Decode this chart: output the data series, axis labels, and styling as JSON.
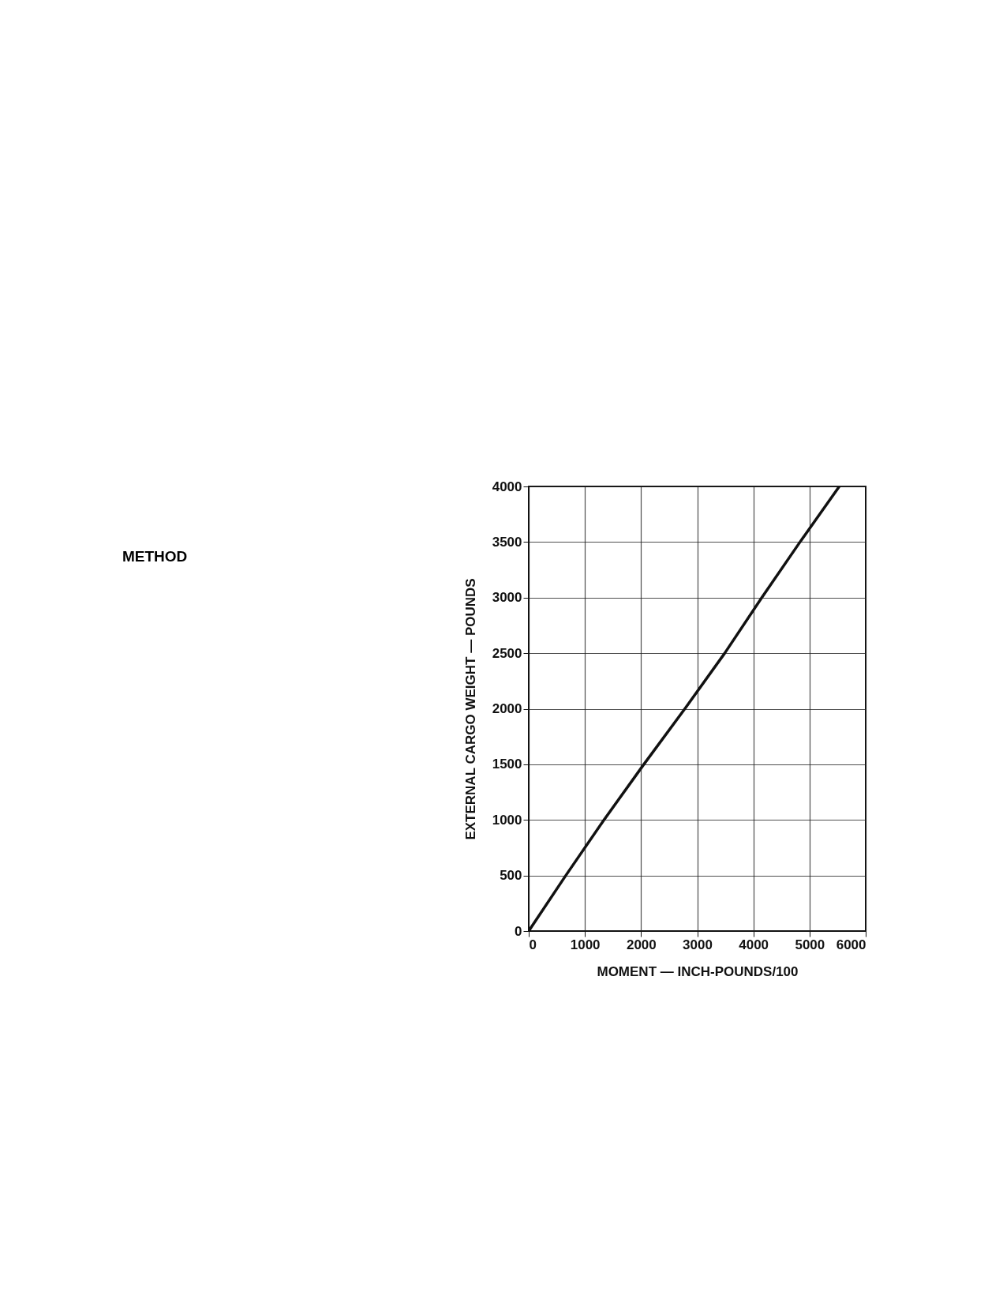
{
  "chart_data": {
    "type": "line",
    "xlabel": "MOMENT — INCH-POUNDS/100",
    "ylabel": "EXTERNAL CARGO WEIGHT — POUNDS",
    "annotations": [
      "METHOD"
    ],
    "series": [
      {
        "color": "#111111",
        "x": [
          0,
          660,
          1340,
          2050,
          2780,
          3490,
          4150,
          4830,
          5530
        ],
        "values": [
          0,
          500,
          1000,
          1500,
          2000,
          2500,
          3000,
          3500,
          4000
        ]
      }
    ],
    "xlim": [
      0,
      6000
    ],
    "xticks": [
      0,
      1000,
      2000,
      3000,
      4000,
      5000,
      6000
    ],
    "ylim": [
      0,
      4000
    ],
    "yticks": [
      0,
      500,
      1000,
      1500,
      2000,
      2500,
      3000,
      3500,
      4000
    ],
    "grid": true,
    "marker": "none",
    "line_style": "solid"
  }
}
